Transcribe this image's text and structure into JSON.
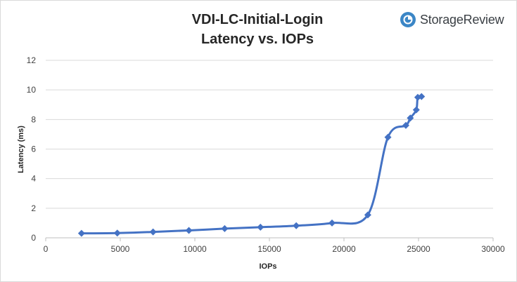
{
  "brand": {
    "name": "StorageReview",
    "accent": "#3b86c6"
  },
  "chart_data": {
    "type": "line",
    "title": "VDI-LC-Initial-Login",
    "subtitle": "Latency vs. IOPs",
    "xlabel": "IOPs",
    "ylabel": "Latency (ms)",
    "xlim": [
      0,
      30000
    ],
    "ylim": [
      0,
      12
    ],
    "xticks": [
      0,
      5000,
      10000,
      15000,
      20000,
      25000,
      30000
    ],
    "yticks": [
      0,
      2,
      4,
      6,
      8,
      10,
      12
    ],
    "grid": "horizontal",
    "legend": "none",
    "series": [
      {
        "color": "#4472c4",
        "points": [
          [
            2400,
            0.3
          ],
          [
            4800,
            0.32
          ],
          [
            7200,
            0.4
          ],
          [
            9600,
            0.5
          ],
          [
            12000,
            0.62
          ],
          [
            14400,
            0.72
          ],
          [
            16800,
            0.82
          ],
          [
            19200,
            1.0
          ],
          [
            21600,
            1.55
          ],
          [
            22950,
            6.8
          ],
          [
            24150,
            7.6
          ],
          [
            24450,
            8.1
          ],
          [
            24850,
            8.65
          ],
          [
            24950,
            9.5
          ],
          [
            25200,
            9.55
          ]
        ]
      }
    ]
  }
}
